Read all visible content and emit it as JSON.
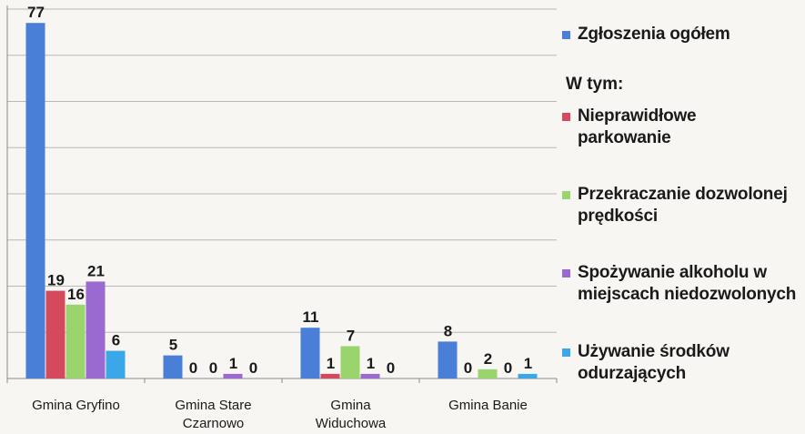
{
  "chart_data": {
    "type": "bar",
    "categories": [
      "Gmina Gryfino",
      "Gmina Stare Czarnowo",
      "Gmina Widuchowa",
      "Gmina Banie"
    ],
    "series": [
      {
        "name": "Zgłoszenia ogółem",
        "color": "#4a7fd8",
        "values": [
          77,
          5,
          11,
          8
        ]
      },
      {
        "name": "Nieprawidłowe parkowanie",
        "color": "#d44a5c",
        "values": [
          19,
          0,
          1,
          0
        ]
      },
      {
        "name": "Przekraczanie dozwolonej prędkości",
        "color": "#9ad46c",
        "values": [
          16,
          0,
          7,
          2
        ]
      },
      {
        "name": "Spożywanie alkoholu w miejscach niedozwolonych",
        "color": "#9a6ad0",
        "values": [
          21,
          1,
          1,
          0
        ]
      },
      {
        "name": "Używanie środków odurzających",
        "color": "#3aa8e8",
        "values": [
          6,
          0,
          0,
          1
        ]
      }
    ],
    "ylim": [
      0,
      80
    ],
    "grid": true,
    "legend_position": "right",
    "legend_heading": "W tym:"
  }
}
